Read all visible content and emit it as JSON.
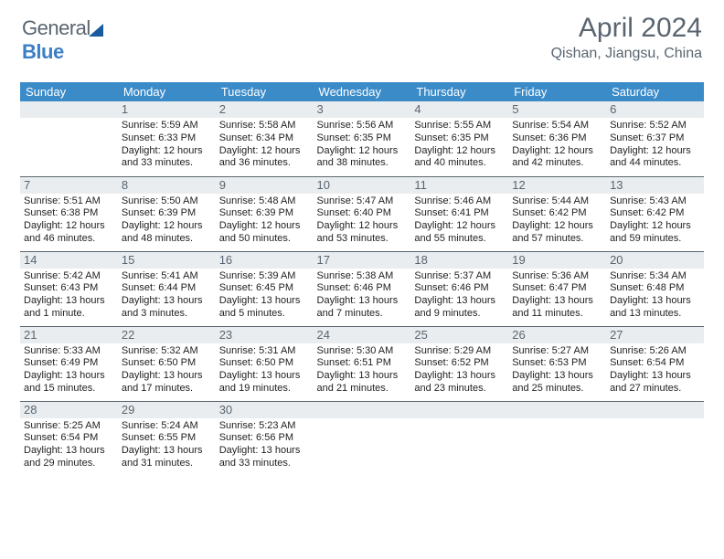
{
  "brand": {
    "word1": "General",
    "word2": "Blue"
  },
  "title": {
    "month": "April 2024",
    "location": "Qishan, Jiangsu, China"
  },
  "calendar": {
    "type": "table",
    "header_bg": "#3b8bc9",
    "header_fg": "#ffffff",
    "daynum_bg": "#e9edef",
    "text_color": "#222222",
    "divider_color": "#5a6570",
    "day_headers": [
      "Sunday",
      "Monday",
      "Tuesday",
      "Wednesday",
      "Thursday",
      "Friday",
      "Saturday"
    ],
    "weeks": [
      [
        null,
        {
          "n": "1",
          "sr": "Sunrise: 5:59 AM",
          "ss": "Sunset: 6:33 PM",
          "d1": "Daylight: 12 hours",
          "d2": "and 33 minutes."
        },
        {
          "n": "2",
          "sr": "Sunrise: 5:58 AM",
          "ss": "Sunset: 6:34 PM",
          "d1": "Daylight: 12 hours",
          "d2": "and 36 minutes."
        },
        {
          "n": "3",
          "sr": "Sunrise: 5:56 AM",
          "ss": "Sunset: 6:35 PM",
          "d1": "Daylight: 12 hours",
          "d2": "and 38 minutes."
        },
        {
          "n": "4",
          "sr": "Sunrise: 5:55 AM",
          "ss": "Sunset: 6:35 PM",
          "d1": "Daylight: 12 hours",
          "d2": "and 40 minutes."
        },
        {
          "n": "5",
          "sr": "Sunrise: 5:54 AM",
          "ss": "Sunset: 6:36 PM",
          "d1": "Daylight: 12 hours",
          "d2": "and 42 minutes."
        },
        {
          "n": "6",
          "sr": "Sunrise: 5:52 AM",
          "ss": "Sunset: 6:37 PM",
          "d1": "Daylight: 12 hours",
          "d2": "and 44 minutes."
        }
      ],
      [
        {
          "n": "7",
          "sr": "Sunrise: 5:51 AM",
          "ss": "Sunset: 6:38 PM",
          "d1": "Daylight: 12 hours",
          "d2": "and 46 minutes."
        },
        {
          "n": "8",
          "sr": "Sunrise: 5:50 AM",
          "ss": "Sunset: 6:39 PM",
          "d1": "Daylight: 12 hours",
          "d2": "and 48 minutes."
        },
        {
          "n": "9",
          "sr": "Sunrise: 5:48 AM",
          "ss": "Sunset: 6:39 PM",
          "d1": "Daylight: 12 hours",
          "d2": "and 50 minutes."
        },
        {
          "n": "10",
          "sr": "Sunrise: 5:47 AM",
          "ss": "Sunset: 6:40 PM",
          "d1": "Daylight: 12 hours",
          "d2": "and 53 minutes."
        },
        {
          "n": "11",
          "sr": "Sunrise: 5:46 AM",
          "ss": "Sunset: 6:41 PM",
          "d1": "Daylight: 12 hours",
          "d2": "and 55 minutes."
        },
        {
          "n": "12",
          "sr": "Sunrise: 5:44 AM",
          "ss": "Sunset: 6:42 PM",
          "d1": "Daylight: 12 hours",
          "d2": "and 57 minutes."
        },
        {
          "n": "13",
          "sr": "Sunrise: 5:43 AM",
          "ss": "Sunset: 6:42 PM",
          "d1": "Daylight: 12 hours",
          "d2": "and 59 minutes."
        }
      ],
      [
        {
          "n": "14",
          "sr": "Sunrise: 5:42 AM",
          "ss": "Sunset: 6:43 PM",
          "d1": "Daylight: 13 hours",
          "d2": "and 1 minute."
        },
        {
          "n": "15",
          "sr": "Sunrise: 5:41 AM",
          "ss": "Sunset: 6:44 PM",
          "d1": "Daylight: 13 hours",
          "d2": "and 3 minutes."
        },
        {
          "n": "16",
          "sr": "Sunrise: 5:39 AM",
          "ss": "Sunset: 6:45 PM",
          "d1": "Daylight: 13 hours",
          "d2": "and 5 minutes."
        },
        {
          "n": "17",
          "sr": "Sunrise: 5:38 AM",
          "ss": "Sunset: 6:46 PM",
          "d1": "Daylight: 13 hours",
          "d2": "and 7 minutes."
        },
        {
          "n": "18",
          "sr": "Sunrise: 5:37 AM",
          "ss": "Sunset: 6:46 PM",
          "d1": "Daylight: 13 hours",
          "d2": "and 9 minutes."
        },
        {
          "n": "19",
          "sr": "Sunrise: 5:36 AM",
          "ss": "Sunset: 6:47 PM",
          "d1": "Daylight: 13 hours",
          "d2": "and 11 minutes."
        },
        {
          "n": "20",
          "sr": "Sunrise: 5:34 AM",
          "ss": "Sunset: 6:48 PM",
          "d1": "Daylight: 13 hours",
          "d2": "and 13 minutes."
        }
      ],
      [
        {
          "n": "21",
          "sr": "Sunrise: 5:33 AM",
          "ss": "Sunset: 6:49 PM",
          "d1": "Daylight: 13 hours",
          "d2": "and 15 minutes."
        },
        {
          "n": "22",
          "sr": "Sunrise: 5:32 AM",
          "ss": "Sunset: 6:50 PM",
          "d1": "Daylight: 13 hours",
          "d2": "and 17 minutes."
        },
        {
          "n": "23",
          "sr": "Sunrise: 5:31 AM",
          "ss": "Sunset: 6:50 PM",
          "d1": "Daylight: 13 hours",
          "d2": "and 19 minutes."
        },
        {
          "n": "24",
          "sr": "Sunrise: 5:30 AM",
          "ss": "Sunset: 6:51 PM",
          "d1": "Daylight: 13 hours",
          "d2": "and 21 minutes."
        },
        {
          "n": "25",
          "sr": "Sunrise: 5:29 AM",
          "ss": "Sunset: 6:52 PM",
          "d1": "Daylight: 13 hours",
          "d2": "and 23 minutes."
        },
        {
          "n": "26",
          "sr": "Sunrise: 5:27 AM",
          "ss": "Sunset: 6:53 PM",
          "d1": "Daylight: 13 hours",
          "d2": "and 25 minutes."
        },
        {
          "n": "27",
          "sr": "Sunrise: 5:26 AM",
          "ss": "Sunset: 6:54 PM",
          "d1": "Daylight: 13 hours",
          "d2": "and 27 minutes."
        }
      ],
      [
        {
          "n": "28",
          "sr": "Sunrise: 5:25 AM",
          "ss": "Sunset: 6:54 PM",
          "d1": "Daylight: 13 hours",
          "d2": "and 29 minutes."
        },
        {
          "n": "29",
          "sr": "Sunrise: 5:24 AM",
          "ss": "Sunset: 6:55 PM",
          "d1": "Daylight: 13 hours",
          "d2": "and 31 minutes."
        },
        {
          "n": "30",
          "sr": "Sunrise: 5:23 AM",
          "ss": "Sunset: 6:56 PM",
          "d1": "Daylight: 13 hours",
          "d2": "and 33 minutes."
        },
        null,
        null,
        null,
        null
      ]
    ]
  }
}
